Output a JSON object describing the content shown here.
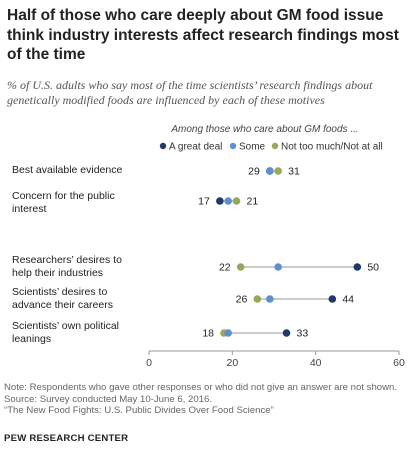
{
  "title": "Half of those who care deeply about GM food issue think industry interests affect research findings most of the time",
  "subtitle": "% of U.S. adults who say most of the time scientists’ research findings about genetically modified foods are influenced by each of these motives",
  "chart_data": {
    "type": "dot",
    "group_label": "Among those who care about GM foods ...",
    "legend_position": "top",
    "series": [
      {
        "name": "A great deal",
        "color": "#1f3a68"
      },
      {
        "name": "Some",
        "color": "#5d8fd1"
      },
      {
        "name": "Not too much/Not at all",
        "color": "#97a85a"
      }
    ],
    "categories": [
      {
        "label_lines": [
          "Best available evidence"
        ],
        "values": [
          29,
          29,
          31
        ],
        "left_label": "29",
        "right_label": "31"
      },
      {
        "label_lines": [
          "Concern for the public",
          "interest"
        ],
        "values": [
          17,
          19,
          21
        ],
        "left_label": "17",
        "right_label": "21"
      },
      {
        "label_lines": [
          "Researchers’ desires to",
          "help their industries"
        ],
        "values": [
          50,
          31,
          22
        ],
        "left_label": "22",
        "right_label": "50"
      },
      {
        "label_lines": [
          "Scientists’ desires to",
          "advance their careers"
        ],
        "values": [
          44,
          29,
          26
        ],
        "left_label": "26",
        "right_label": "44"
      },
      {
        "label_lines": [
          "Scientists’ own political",
          "leanings"
        ],
        "values": [
          33,
          19,
          18
        ],
        "left_label": "18",
        "right_label": "33"
      }
    ],
    "x_ticks": [
      "0",
      "20",
      "40",
      "60"
    ],
    "xlim": [
      0,
      60
    ],
    "grid": false
  },
  "notes": [
    "Note: Respondents who gave other responses or who did not give an answer are not shown.",
    "Source: Survey conducted May 10-June 6, 2016.",
    "“The New Food Fights: U.S. Public Divides Over Food Science”"
  ],
  "brand": "PEW RESEARCH CENTER"
}
